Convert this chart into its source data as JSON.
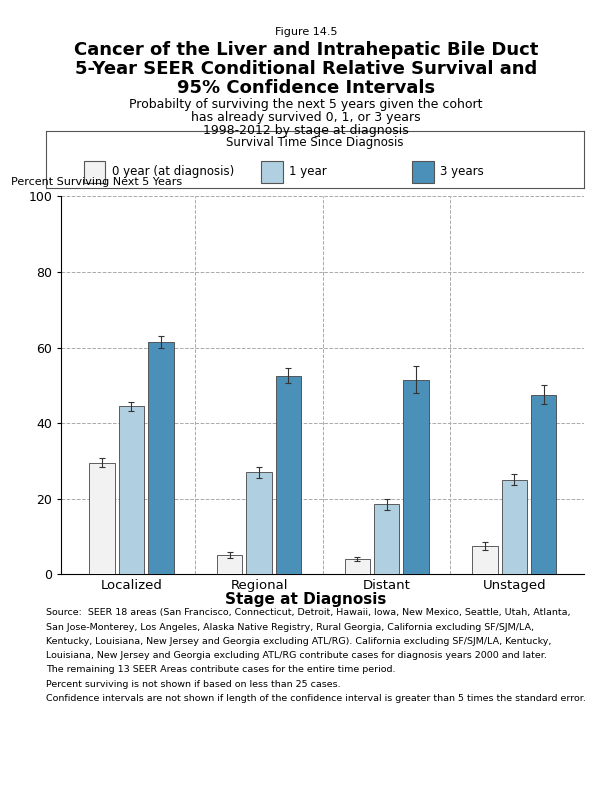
{
  "figure_label": "Figure 14.5",
  "title_line1": "Cancer of the Liver and Intrahepatic Bile Duct",
  "title_line2": "5-Year SEER Conditional Relative Survival and",
  "title_line3": "95% Confidence Intervals",
  "subtitle_line1": "Probabilty of surviving the next 5 years given the cohort",
  "subtitle_line2": "has already survived 0, 1, or 3 years",
  "subtitle_line3": "1998-2012 by stage at diagnosis",
  "legend_title": "Survival Time Since Diagnosis",
  "legend_labels": [
    "0 year (at diagnosis)",
    "1 year",
    "3 years"
  ],
  "bar_colors": [
    "#f2f2f2",
    "#b0cfe0",
    "#4a90b8"
  ],
  "bar_edgecolors": [
    "#444444",
    "#444444",
    "#444444"
  ],
  "stages": [
    "Localized",
    "Regional",
    "Distant",
    "Unstaged"
  ],
  "xlabel": "Stage at Diagnosis",
  "ylabel": "Percent Surviving Next 5 Years",
  "ylim": [
    0,
    100
  ],
  "yticks": [
    0,
    20,
    40,
    60,
    80,
    100
  ],
  "values": {
    "Localized": [
      29.5,
      44.5,
      61.5
    ],
    "Regional": [
      5.0,
      27.0,
      52.5
    ],
    "Distant": [
      4.0,
      18.5,
      51.5
    ],
    "Unstaged": [
      7.5,
      25.0,
      47.5
    ]
  },
  "errors": {
    "Localized": [
      1.2,
      1.2,
      1.5
    ],
    "Regional": [
      0.8,
      1.5,
      2.0
    ],
    "Distant": [
      0.6,
      1.5,
      3.5
    ],
    "Unstaged": [
      1.0,
      1.5,
      2.5
    ]
  },
  "show_error": {
    "Localized": [
      true,
      true,
      true
    ],
    "Regional": [
      true,
      true,
      true
    ],
    "Distant": [
      true,
      true,
      true
    ],
    "Unstaged": [
      true,
      true,
      true
    ]
  },
  "separator_color": "#aaaaaa",
  "footnotes": [
    "Source:  SEER 18 areas (San Francisco, Connecticut, Detroit, Hawaii, Iowa, New Mexico, Seattle, Utah, Atlanta,",
    "San Jose-Monterey, Los Angeles, Alaska Native Registry, Rural Georgia, California excluding SF/SJM/LA,",
    "Kentucky, Louisiana, New Jersey and Georgia excluding ATL/RG). California excluding SF/SJM/LA, Kentucky,",
    "Louisiana, New Jersey and Georgia excluding ATL/RG contribute cases for diagnosis years 2000 and later.",
    "The remaining 13 SEER Areas contribute cases for the entire time period.",
    "Percent surviving is not shown if based on less than 25 cases.",
    "Confidence intervals are not shown if length of the confidence interval is greater than 5 times the standard error."
  ]
}
